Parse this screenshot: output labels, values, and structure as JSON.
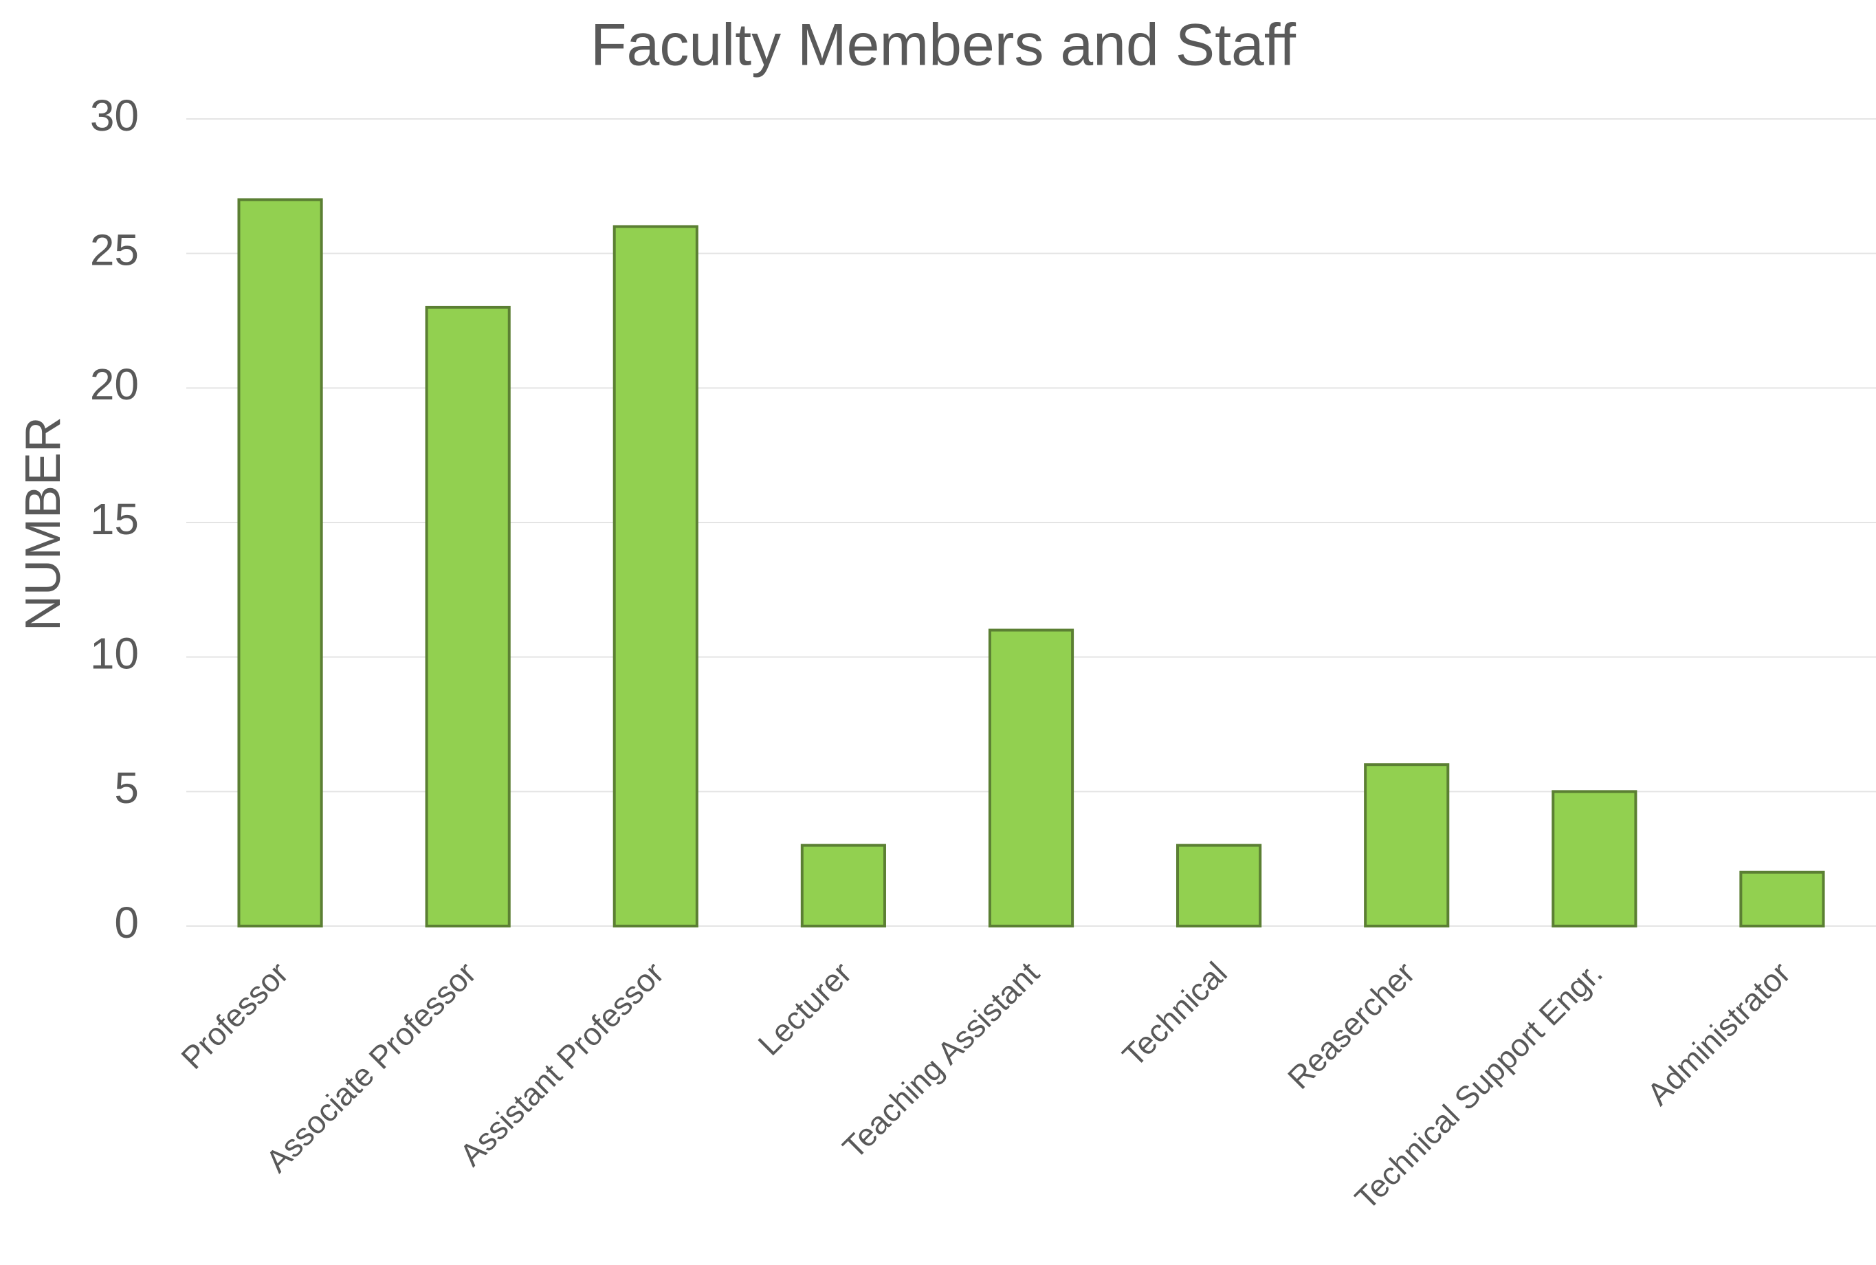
{
  "chart_data": {
    "type": "bar",
    "title": "Faculty Members and Staff",
    "y_label": "NUMBER",
    "categories": [
      "Professor",
      "Associate Professor",
      "Assistant Professor",
      "Lecturer",
      "Teaching Assistant",
      "Technical",
      "Reasercher",
      "Technical Support Engr.",
      "Administrator"
    ],
    "values": [
      27,
      23,
      26,
      3,
      11,
      3,
      6,
      5,
      2
    ],
    "color": "#92d050",
    "ylim": [
      0,
      30
    ],
    "yticks": [
      0,
      5,
      10,
      15,
      20,
      25,
      30
    ],
    "grid": true
  }
}
